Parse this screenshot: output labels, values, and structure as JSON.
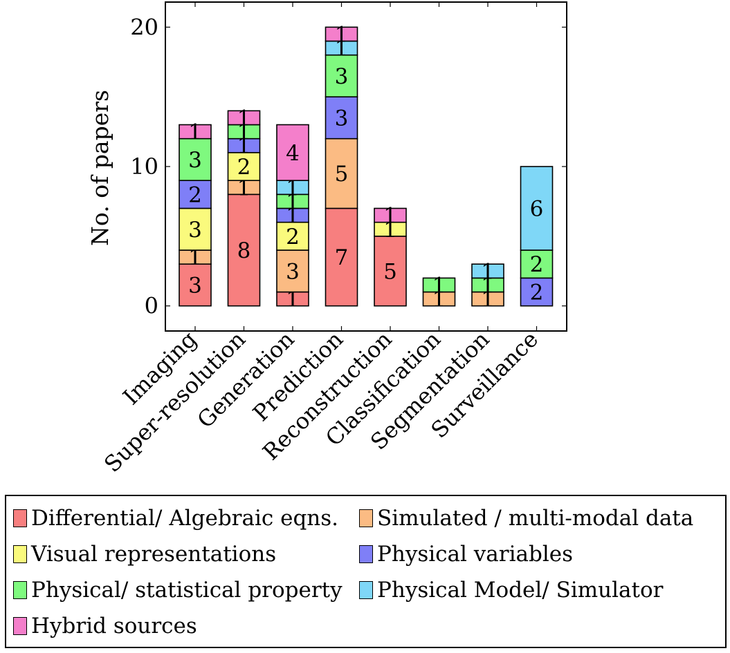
{
  "chart_data": {
    "type": "bar",
    "stacked": true,
    "ylabel": "No. of papers",
    "xlabel": "",
    "ylim": [
      -1.8,
      21.8
    ],
    "yticks": [
      0,
      10,
      20
    ],
    "categories": [
      "Imaging",
      "Super-resolution",
      "Generation",
      "Prediction",
      "Reconstruction",
      "Classification",
      "Segmentation",
      "Surveillance"
    ],
    "series": [
      {
        "name": "Differential/ Algebraic eqns.",
        "color": "#f77f7f",
        "values": [
          3,
          8,
          1,
          7,
          5,
          0,
          0,
          0
        ]
      },
      {
        "name": "Simulated / multi-modal data",
        "color": "#fbbb83",
        "values": [
          1,
          1,
          3,
          5,
          0,
          1,
          1,
          0
        ]
      },
      {
        "name": "Visual representations",
        "color": "#fafa7d",
        "values": [
          3,
          2,
          2,
          0,
          1,
          0,
          0,
          0
        ]
      },
      {
        "name": "Physical variables",
        "color": "#7f7ff7",
        "values": [
          2,
          1,
          1,
          3,
          0,
          0,
          0,
          2
        ]
      },
      {
        "name": "Physical/ statistical property",
        "color": "#7ff97f",
        "values": [
          3,
          1,
          1,
          3,
          0,
          1,
          1,
          2
        ]
      },
      {
        "name": "Physical Model/ Simulator",
        "color": "#7fd7f7",
        "values": [
          0,
          0,
          1,
          1,
          0,
          0,
          1,
          6
        ]
      },
      {
        "name": "Hybrid sources",
        "color": "#f47fcb",
        "values": [
          1,
          1,
          4,
          1,
          1,
          0,
          0,
          0
        ]
      }
    ],
    "legend_position": "bottom"
  }
}
